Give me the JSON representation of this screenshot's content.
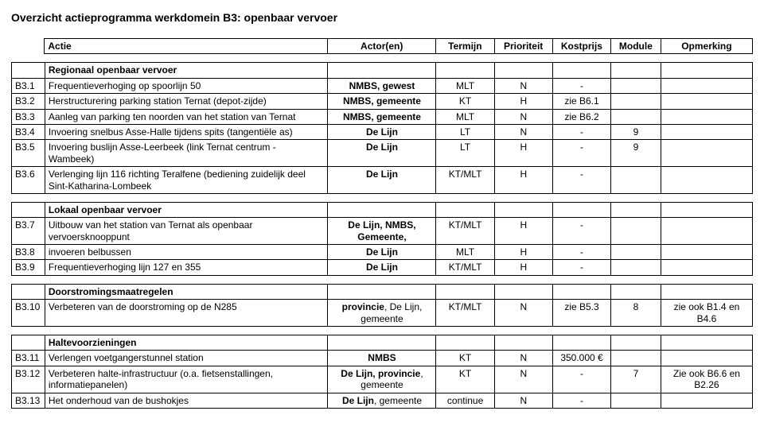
{
  "title": "Overzicht actieprogramma werkdomein B3: openbaar vervoer",
  "headers": {
    "actie": "Actie",
    "actor": "Actor(en)",
    "termijn": "Termijn",
    "prioriteit": "Prioriteit",
    "kostprijs": "Kostprijs",
    "module": "Module",
    "opmerking": "Opmerking"
  },
  "sections": [
    {
      "title": "Regionaal openbaar vervoer",
      "rows": [
        {
          "id": "B3.1",
          "actie": "Frequentieverhoging op spoorlijn 50",
          "actor": "NMBS, gewest",
          "actor_bold": true,
          "termijn": "MLT",
          "prioriteit": "N",
          "kostprijs": "-",
          "module": "",
          "opmerking": ""
        },
        {
          "id": "B3.2",
          "actie": "Herstructurering parking station Ternat (depot-zijde)",
          "actor": "NMBS, gemeente",
          "actor_bold": true,
          "termijn": "KT",
          "prioriteit": "H",
          "kostprijs": "zie B6.1",
          "module": "",
          "opmerking": ""
        },
        {
          "id": "B3.3",
          "actie": "Aanleg van parking ten noorden van het station van Ternat",
          "actor": "NMBS, gemeente",
          "actor_bold": true,
          "termijn": "MLT",
          "prioriteit": "N",
          "kostprijs": "zie B6.2",
          "module": "",
          "opmerking": ""
        },
        {
          "id": "B3.4",
          "actie": "Invoering snelbus Asse-Halle tijdens spits (tangentiële as)",
          "actor": "De Lijn",
          "actor_bold": true,
          "termijn": "LT",
          "prioriteit": "N",
          "kostprijs": "-",
          "module": "9",
          "opmerking": ""
        },
        {
          "id": "B3.5",
          "actie": "Invoering buslijn Asse-Leerbeek (link Ternat centrum - Wambeek)",
          "actor": "De Lijn",
          "actor_bold": true,
          "termijn": "LT",
          "prioriteit": "H",
          "kostprijs": "-",
          "module": "9",
          "opmerking": ""
        },
        {
          "id": "B3.6",
          "actie": "Verlenging lijn 116 richting Teralfene (bediening zuidelijk deel Sint-Katharina-Lombeek",
          "actor": "De Lijn",
          "actor_bold": true,
          "termijn": "KT/MLT",
          "prioriteit": "H",
          "kostprijs": "-",
          "module": "",
          "opmerking": ""
        }
      ]
    },
    {
      "title": "Lokaal openbaar vervoer",
      "rows": [
        {
          "id": "B3.7",
          "actie": "Uitbouw van het station van Ternat als openbaar vervoersknooppunt",
          "actor": "De Lijn, NMBS, Gemeente,",
          "actor_bold": true,
          "termijn": "KT/MLT",
          "prioriteit": "H",
          "kostprijs": "-",
          "module": "",
          "opmerking": ""
        },
        {
          "id": "B3.8",
          "actie": "invoeren belbussen",
          "actor": "De Lijn",
          "actor_bold": true,
          "termijn": "MLT",
          "prioriteit": "H",
          "kostprijs": "-",
          "module": "",
          "opmerking": ""
        },
        {
          "id": "B3.9",
          "actie": "Frequentieverhoging lijn 127 en 355",
          "actor": "De Lijn",
          "actor_bold": true,
          "termijn": "KT/MLT",
          "prioriteit": "H",
          "kostprijs": "-",
          "module": "",
          "opmerking": ""
        }
      ]
    },
    {
      "title": "Doorstromingsmaatregelen",
      "rows": [
        {
          "id": "B3.10",
          "actie": "Verbeteren van de doorstroming op de N285",
          "actor": "provincie, De Lijn, gemeente",
          "actor_bold": false,
          "actor_partial_bold": "provincie",
          "termijn": "KT/MLT",
          "prioriteit": "N",
          "kostprijs": "zie B5.3",
          "module": "8",
          "opmerking": "zie ook B1.4 en B4.6"
        }
      ]
    },
    {
      "title": "Haltevoorzieningen",
      "rows": [
        {
          "id": "B3.11",
          "actie": "Verlengen voetgangerstunnel station",
          "actor": "NMBS",
          "actor_bold": true,
          "termijn": "KT",
          "prioriteit": "N",
          "kostprijs": "350.000 €",
          "module": "",
          "opmerking": ""
        },
        {
          "id": "B3.12",
          "actie": "Verbeteren halte-infrastructuur (o.a. fietsenstallingen, informatiepanelen)",
          "actor": "De Lijn, provincie, gemeente",
          "actor_bold": false,
          "actor_partial_bold": "De Lijn, provincie",
          "termijn": "KT",
          "prioriteit": "N",
          "kostprijs": "-",
          "module": "7",
          "opmerking": "Zie ook B6.6 en B2.26"
        },
        {
          "id": "B3.13",
          "actie": "Het onderhoud van de bushokjes",
          "actor": "De Lijn, gemeente",
          "actor_bold": false,
          "actor_partial_bold": "De Lijn",
          "termijn": "continue",
          "prioriteit": "N",
          "kostprijs": "-",
          "module": "",
          "opmerking": ""
        }
      ]
    }
  ]
}
